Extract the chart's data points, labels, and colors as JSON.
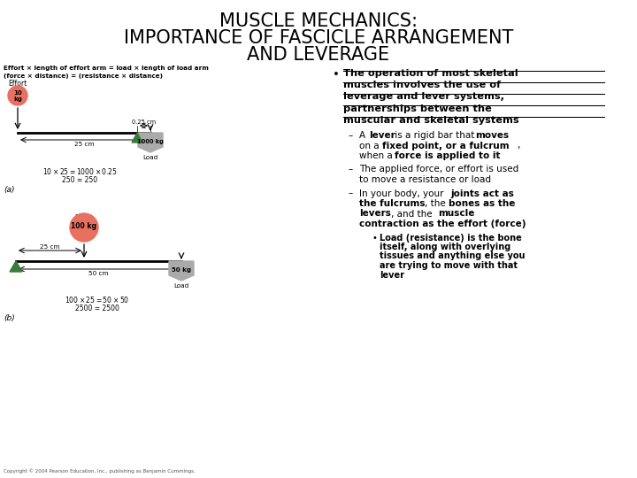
{
  "title_line1": "MUSCLE MECHANICS:",
  "title_line2": "IMPORTANCE OF FASCICLE ARRANGEMENT",
  "title_line3": "AND LEVERAGE",
  "bg_color": "#ffffff",
  "formula_line1": "Effort × length of effort arm = load × length of load arm",
  "formula_line2": "(force × distance) = (resistance × distance)",
  "copyright": "Copyright © 2004 Pearson Education, Inc., publishing as Benjamin Cummings."
}
